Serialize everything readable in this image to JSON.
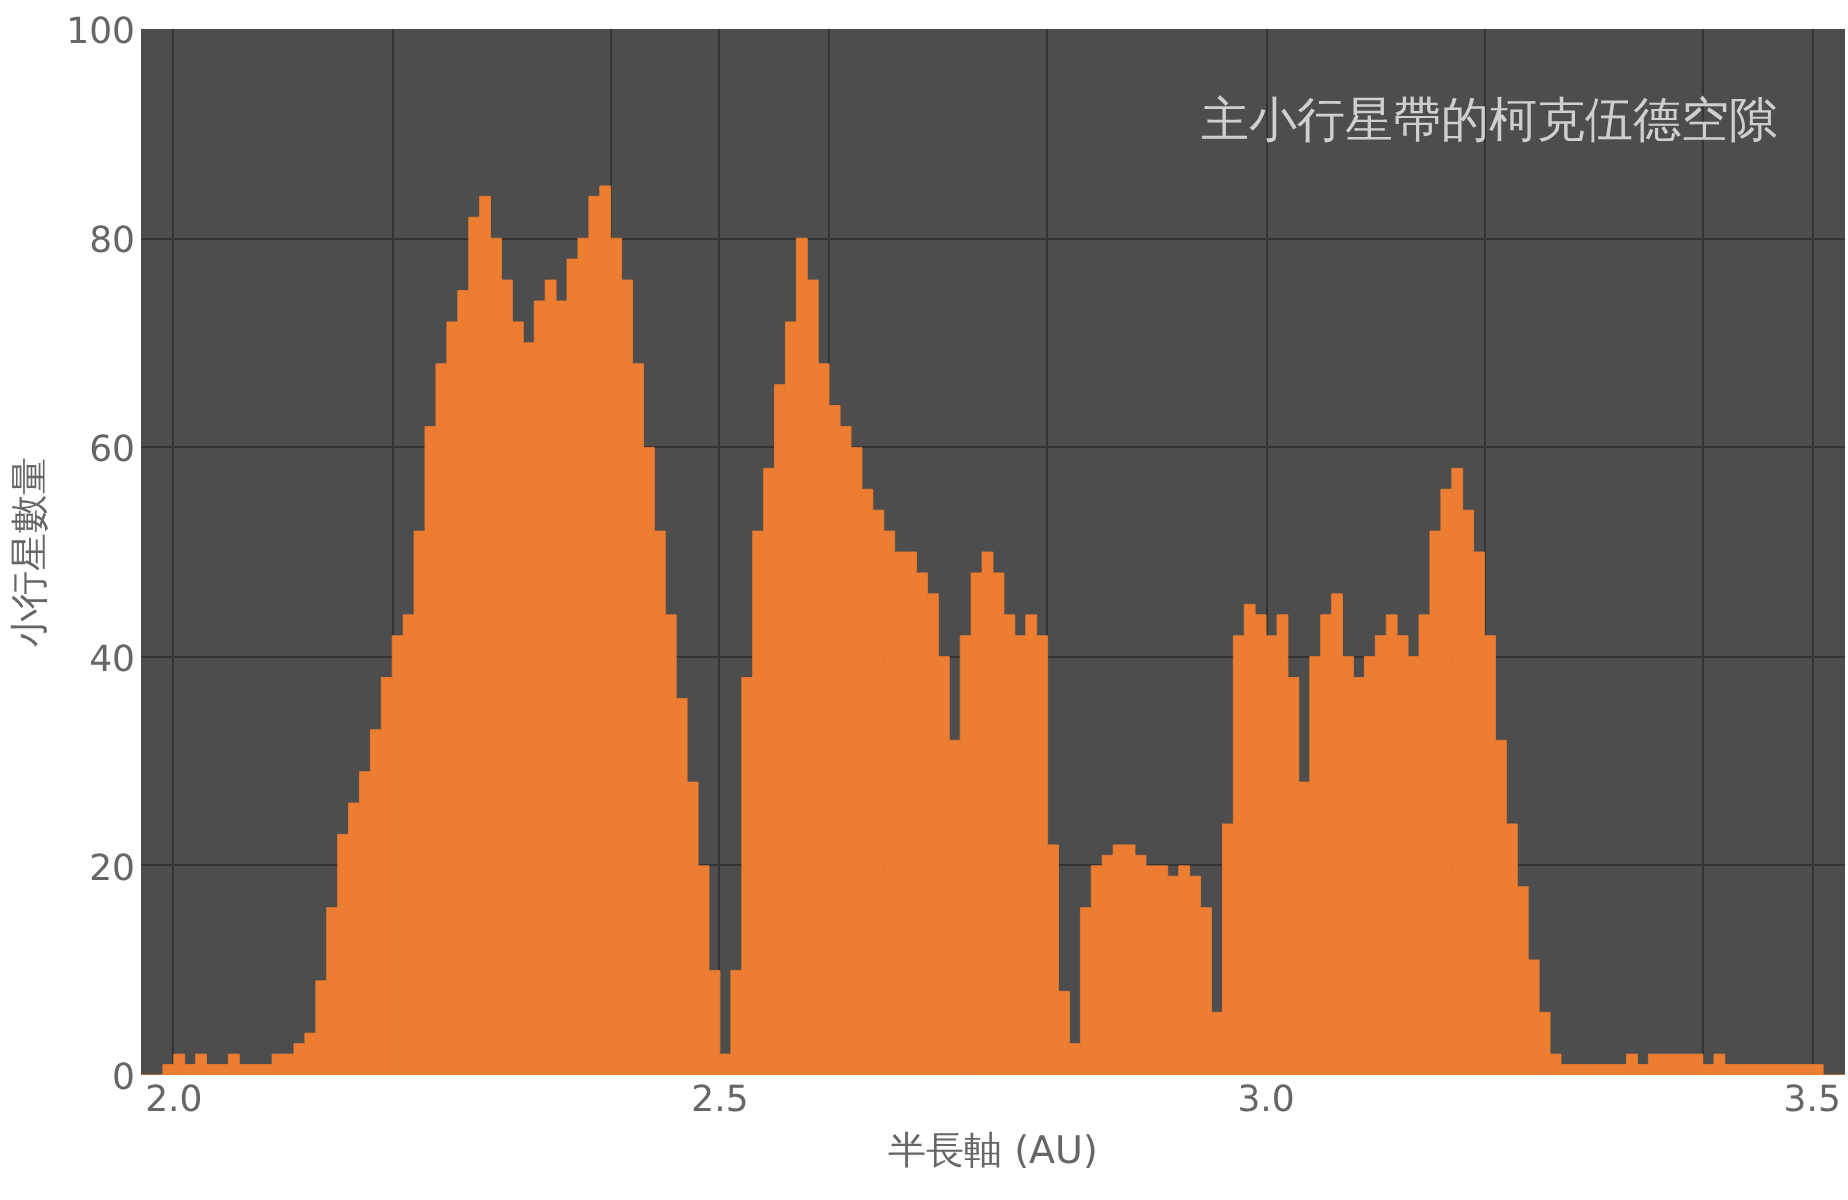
{
  "chart_data": {
    "type": "histogram",
    "title": "主小行星帶的柯克伍德空隙",
    "xlabel": "半長軸 (AU)",
    "ylabel": "小行星數量",
    "color": "#ed7d31",
    "bins": [
      1.97,
      1.98,
      1.99,
      2.0,
      2.01,
      2.02,
      2.03,
      2.04,
      2.05,
      2.06,
      2.07,
      2.08,
      2.09,
      2.1,
      2.11,
      2.12,
      2.13,
      2.14,
      2.15,
      2.16,
      2.17,
      2.18,
      2.19,
      2.2,
      2.21,
      2.22,
      2.23,
      2.24,
      2.25,
      2.26,
      2.27,
      2.28,
      2.29,
      2.3,
      2.31,
      2.32,
      2.33,
      2.34,
      2.35,
      2.36,
      2.37,
      2.38,
      2.39,
      2.4,
      2.41,
      2.42,
      2.43,
      2.44,
      2.45,
      2.46,
      2.47,
      2.48,
      2.49,
      2.5,
      2.51,
      2.52,
      2.53,
      2.54,
      2.55,
      2.56,
      2.57,
      2.58,
      2.59,
      2.6,
      2.61,
      2.62,
      2.63,
      2.64,
      2.65,
      2.66,
      2.67,
      2.68,
      2.69,
      2.7,
      2.71,
      2.72,
      2.73,
      2.74,
      2.75,
      2.76,
      2.77,
      2.78,
      2.79,
      2.8,
      2.81,
      2.82,
      2.83,
      2.84,
      2.85,
      2.86,
      2.87,
      2.88,
      2.89,
      2.9,
      2.91,
      2.92,
      2.93,
      2.94,
      2.95,
      2.96,
      2.97,
      2.98,
      2.99,
      3.0,
      3.01,
      3.02,
      3.03,
      3.04,
      3.05,
      3.06,
      3.07,
      3.08,
      3.09,
      3.1,
      3.11,
      3.12,
      3.13,
      3.14,
      3.15,
      3.16,
      3.17,
      3.18,
      3.19,
      3.2,
      3.21,
      3.22,
      3.23,
      3.24,
      3.25,
      3.26,
      3.27,
      3.28,
      3.29,
      3.3,
      3.31,
      3.32,
      3.33,
      3.34,
      3.35,
      3.36,
      3.37,
      3.38,
      3.39,
      3.4,
      3.41,
      3.42,
      3.43,
      3.44,
      3.45,
      3.46,
      3.47,
      3.48,
      3.49,
      3.5,
      3.51,
      3.52,
      3.53
    ],
    "values": [
      0,
      0,
      1,
      2,
      1,
      2,
      1,
      1,
      2,
      1,
      1,
      1,
      2,
      2,
      3,
      4,
      9,
      16,
      23,
      26,
      29,
      33,
      38,
      42,
      44,
      52,
      62,
      68,
      72,
      75,
      82,
      84,
      80,
      76,
      72,
      70,
      74,
      76,
      74,
      78,
      80,
      84,
      85,
      80,
      76,
      68,
      60,
      52,
      44,
      36,
      28,
      20,
      10,
      2,
      10,
      38,
      52,
      58,
      66,
      72,
      80,
      76,
      68,
      64,
      62,
      60,
      56,
      54,
      52,
      50,
      50,
      48,
      46,
      40,
      32,
      42,
      48,
      50,
      48,
      44,
      42,
      44,
      42,
      22,
      8,
      3,
      16,
      20,
      21,
      22,
      22,
      21,
      20,
      20,
      19,
      20,
      19,
      16,
      6,
      24,
      42,
      45,
      44,
      42,
      44,
      38,
      28,
      40,
      44,
      46,
      40,
      38,
      40,
      42,
      44,
      42,
      40,
      44,
      52,
      56,
      58,
      54,
      50,
      42,
      32,
      24,
      18,
      11,
      6,
      2,
      1,
      1,
      1,
      1,
      1,
      1,
      2,
      1,
      2,
      2,
      2,
      2,
      2,
      1,
      2,
      1,
      1,
      1,
      1,
      1,
      1,
      1,
      1,
      1,
      0,
      0
    ],
    "xlim": [
      1.97,
      3.53
    ],
    "ylim": [
      0,
      100
    ],
    "xticks": [
      {
        "value": 2.0,
        "label": "2.0"
      },
      {
        "value": 2.2,
        "label": null
      },
      {
        "value": 2.4,
        "label": null
      },
      2.5,
      {
        "value": 2.6,
        "label": null
      },
      {
        "value": 2.8,
        "label": null
      },
      {
        "value": 3.0,
        "label": "3.0"
      },
      {
        "value": 3.2,
        "label": null
      },
      {
        "value": 3.4,
        "label": null
      },
      3.5
    ],
    "yticks": [
      0,
      20,
      40,
      60,
      80,
      100
    ],
    "grid": true
  }
}
